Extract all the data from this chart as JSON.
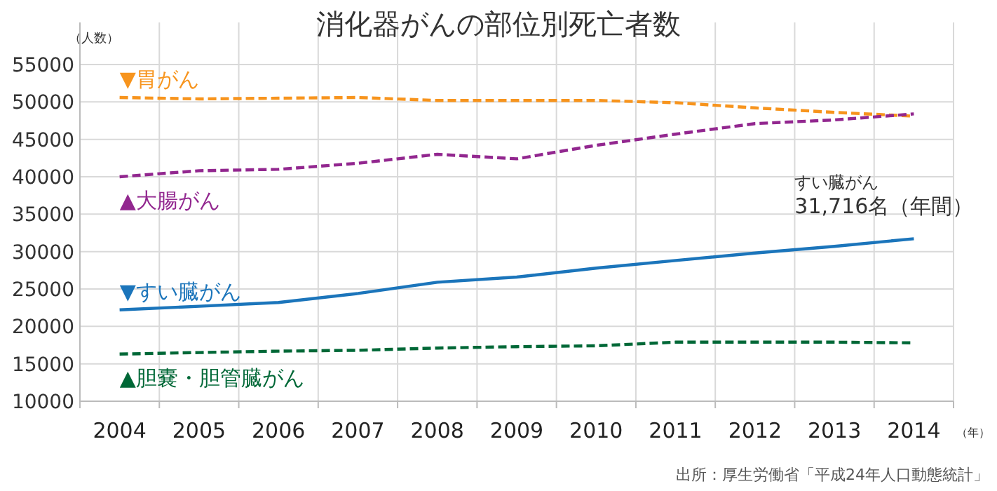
{
  "chart_data": {
    "type": "line",
    "title": "消化器がんの部位別死亡者数",
    "ylabel": "（人数）",
    "xlabel": "（年）",
    "categories": [
      "2004",
      "2005",
      "2006",
      "2007",
      "2008",
      "2009",
      "2010",
      "2011",
      "2012",
      "2013",
      "2014"
    ],
    "series": [
      {
        "name": "▼胃がん",
        "color": "#f7941d",
        "line_style": "dashed",
        "values": [
          50600,
          50400,
          50500,
          50600,
          50200,
          50200,
          50200,
          49900,
          49200,
          48600,
          48100
        ]
      },
      {
        "name": "▲大腸がん",
        "color": "#92278f",
        "line_style": "dashed",
        "values": [
          40000,
          40800,
          41000,
          41800,
          43000,
          42400,
          44200,
          45700,
          47100,
          47600,
          48400
        ]
      },
      {
        "name": "▼すい臓がん",
        "color": "#1b75bb",
        "line_style": "solid",
        "values": [
          22200,
          22700,
          23200,
          24400,
          25900,
          26600,
          27800,
          28800,
          29800,
          30700,
          31716
        ]
      },
      {
        "name": "▲胆嚢・胆管臓がん",
        "color": "#006837",
        "line_style": "dashed",
        "values": [
          16300,
          16500,
          16700,
          16800,
          17100,
          17300,
          17400,
          17900,
          17900,
          17900,
          17800
        ]
      }
    ],
    "ylim": [
      10000,
      55000
    ],
    "yticks": [
      10000,
      15000,
      20000,
      25000,
      30000,
      35000,
      40000,
      45000,
      50000,
      55000
    ],
    "grid": true,
    "legend": false,
    "marker": "none",
    "annotations": [
      {
        "text": "すい臓がん\n31,716名（年間）",
        "x": "2014",
        "y": 31716
      },
      "出所：厚生労働省「平成24年人口動態統計」"
    ]
  }
}
